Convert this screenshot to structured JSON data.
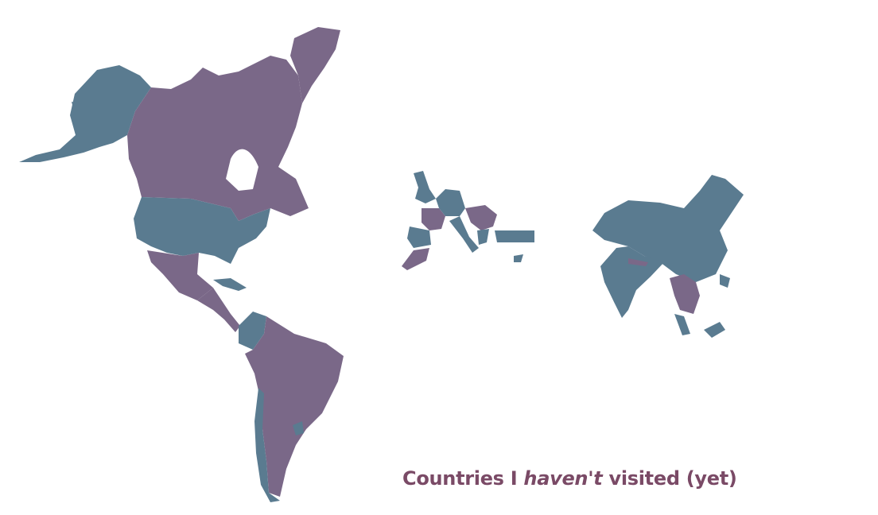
{
  "caption": {
    "prefix": "Countries I ",
    "emphasis": "haven't",
    "suffix": " visited (yet)"
  },
  "colors": {
    "visited": "#5a7b90",
    "not_visited": "#7a6888",
    "caption": "#7a4a66"
  },
  "regions": [
    {
      "name": "Alaska",
      "status": "visited"
    },
    {
      "name": "Canada",
      "status": "not_visited"
    },
    {
      "name": "Greenland",
      "status": "not_visited"
    },
    {
      "name": "United States",
      "status": "visited"
    },
    {
      "name": "Mexico",
      "status": "not_visited"
    },
    {
      "name": "Central America",
      "status": "not_visited"
    },
    {
      "name": "Cuba",
      "status": "visited"
    },
    {
      "name": "Colombia",
      "status": "visited"
    },
    {
      "name": "Brazil and South America",
      "status": "not_visited"
    },
    {
      "name": "Chile",
      "status": "visited"
    },
    {
      "name": "Uruguay",
      "status": "visited"
    },
    {
      "name": "United Kingdom",
      "status": "visited"
    },
    {
      "name": "Central Europe",
      "status": "visited"
    },
    {
      "name": "France",
      "status": "not_visited"
    },
    {
      "name": "Spain",
      "status": "visited"
    },
    {
      "name": "Morocco",
      "status": "not_visited"
    },
    {
      "name": "Italy",
      "status": "visited"
    },
    {
      "name": "Balkans",
      "status": "not_visited"
    },
    {
      "name": "Greece",
      "status": "visited"
    },
    {
      "name": "Turkey",
      "status": "visited"
    },
    {
      "name": "Cyprus",
      "status": "visited"
    },
    {
      "name": "China",
      "status": "visited"
    },
    {
      "name": "India",
      "status": "visited"
    },
    {
      "name": "Nepal",
      "status": "not_visited"
    },
    {
      "name": "Southeast Asia",
      "status": "not_visited"
    },
    {
      "name": "Malaysia",
      "status": "visited"
    },
    {
      "name": "Indonesia",
      "status": "visited"
    },
    {
      "name": "Philippines",
      "status": "visited"
    }
  ]
}
